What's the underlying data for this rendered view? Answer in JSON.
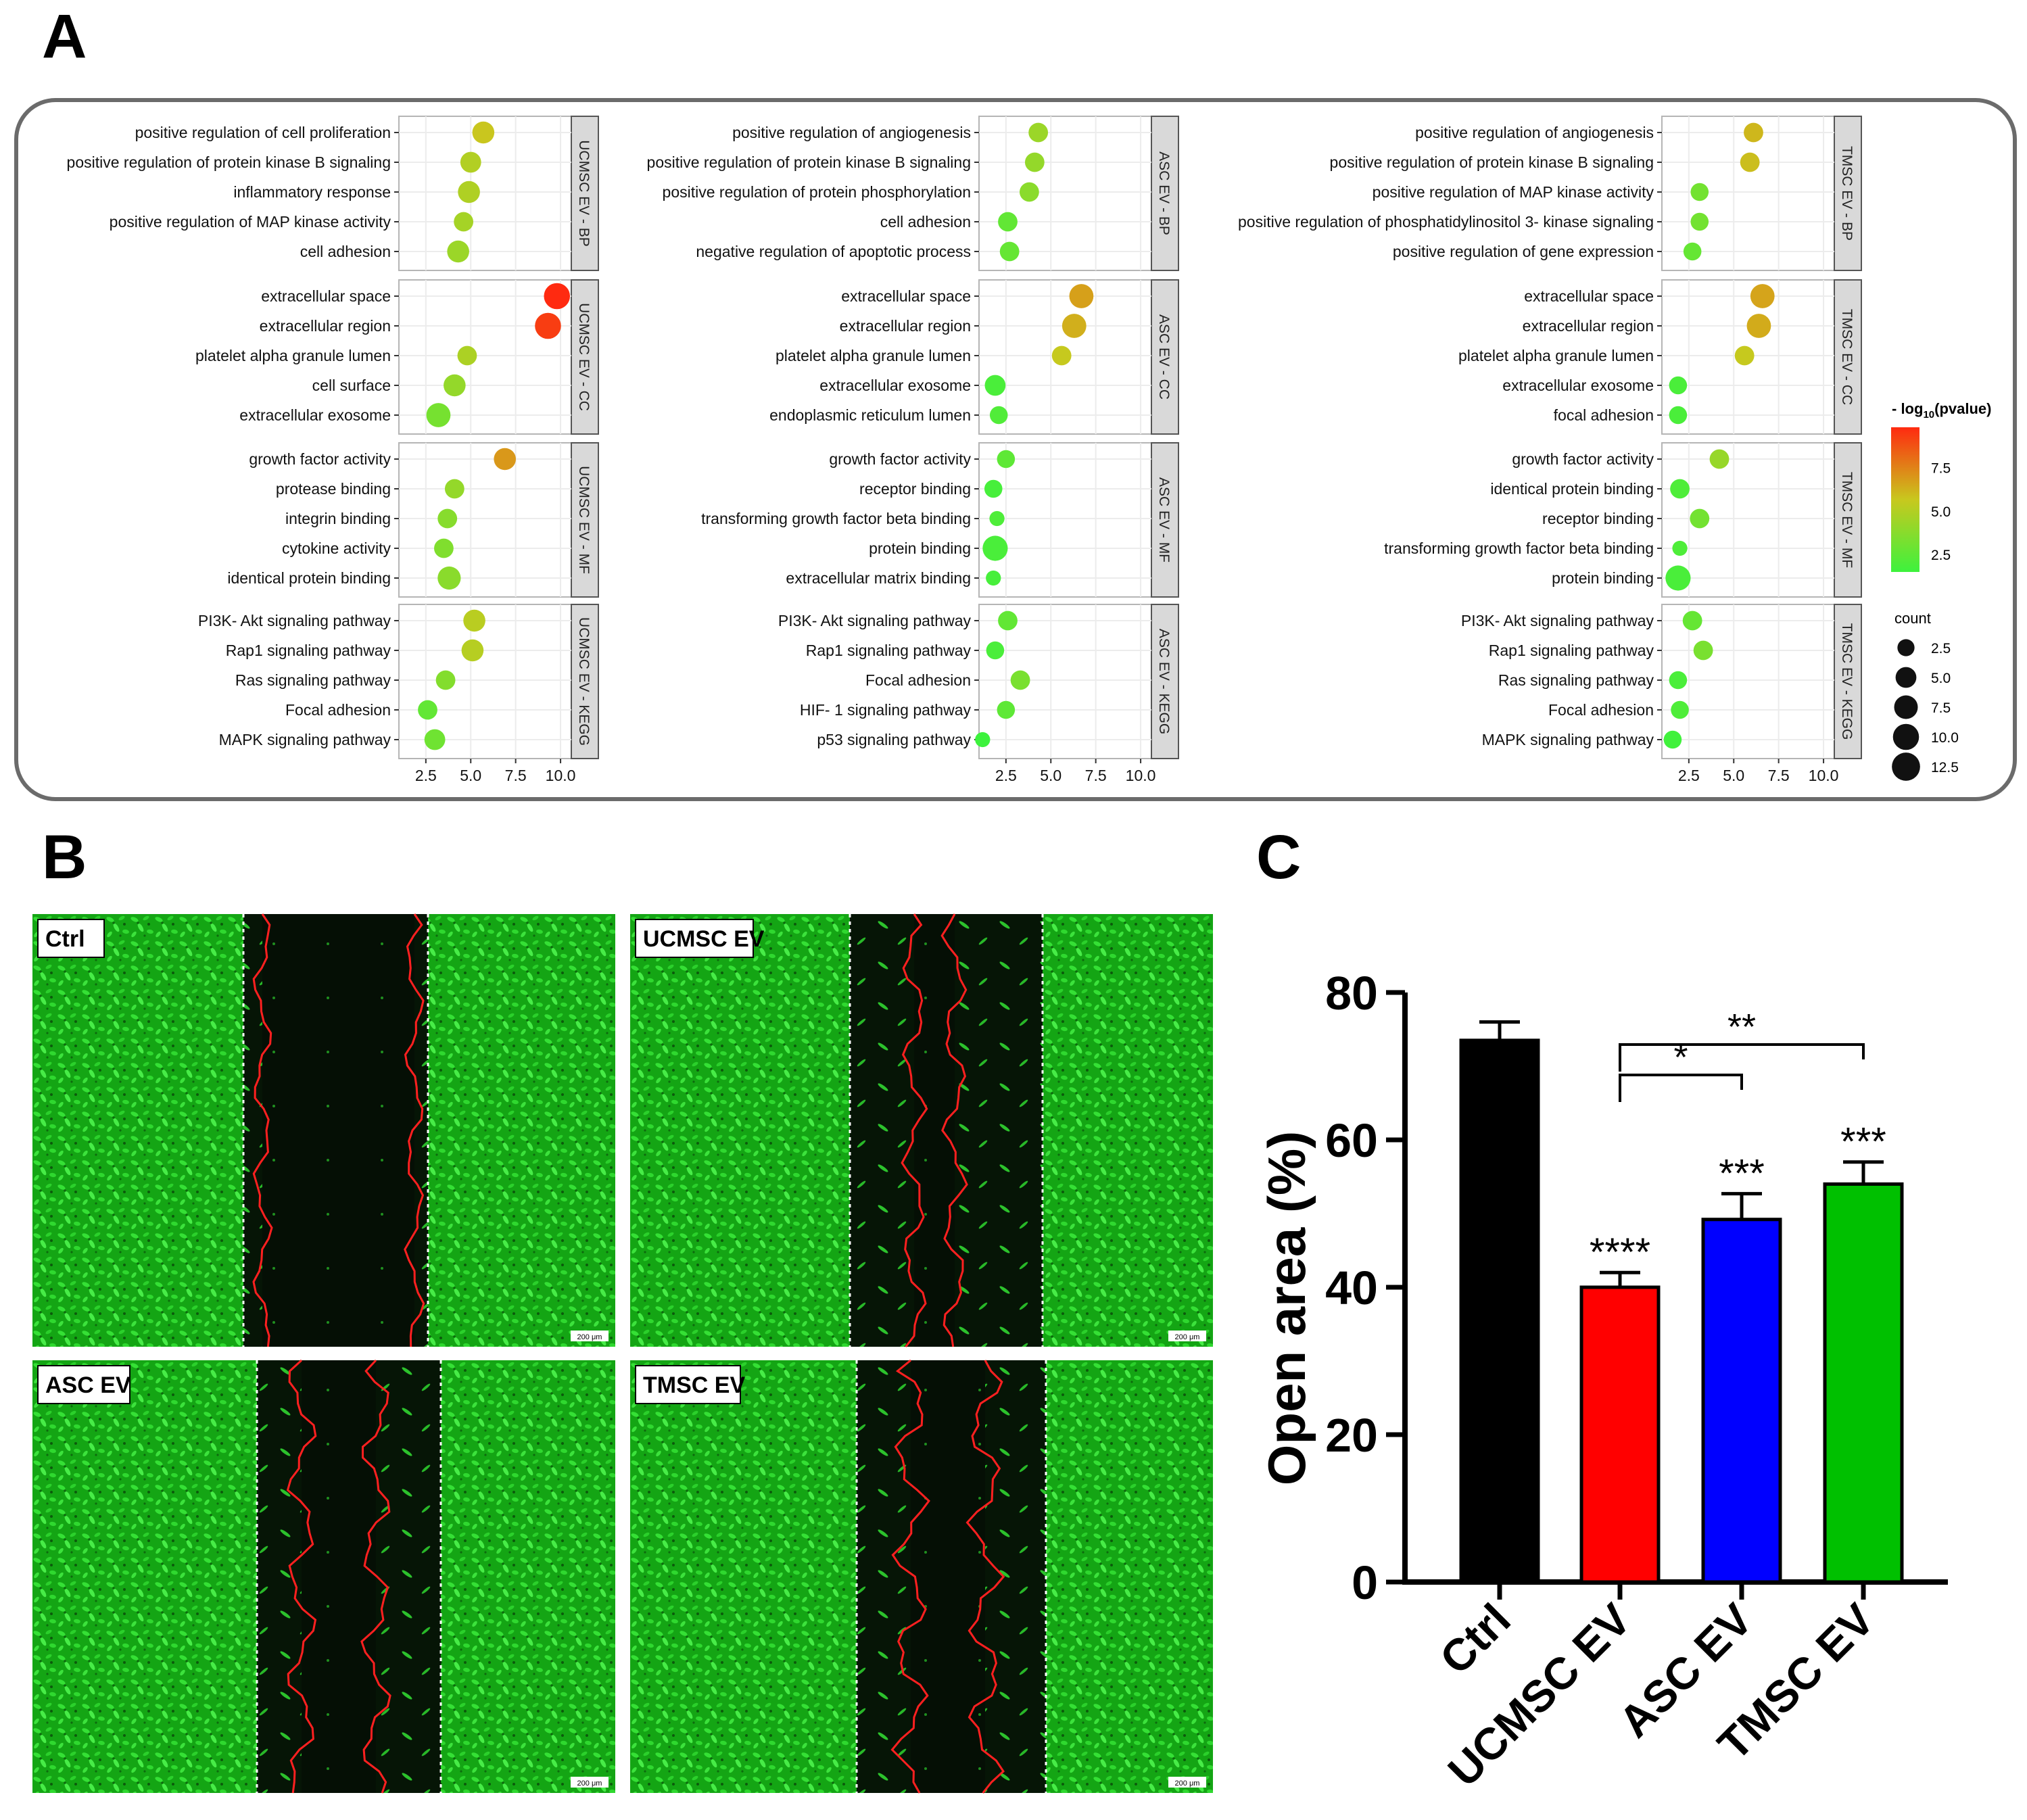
{
  "panel_labels": {
    "a": "A",
    "b": "B",
    "c": "C"
  },
  "panel_a": {
    "axis_ticks": [
      "2.5",
      "5.0",
      "7.5",
      "10.0"
    ],
    "columns": [
      {
        "name": "UCMSC",
        "facets": [
          {
            "strip": "UCMSC EV - BP",
            "terms": [
              {
                "label": "positive regulation of cell proliferation",
                "x": 5.7,
                "count": 6
              },
              {
                "label": "positive regulation of protein kinase B signaling",
                "x": 5.0,
                "count": 5
              },
              {
                "label": "inflammatory response",
                "x": 4.9,
                "count": 6
              },
              {
                "label": "positive regulation of MAP kinase activity",
                "x": 4.6,
                "count": 4
              },
              {
                "label": "cell adhesion",
                "x": 4.3,
                "count": 6
              }
            ]
          },
          {
            "strip": "UCMSC EV - CC",
            "terms": [
              {
                "label": "extracellular space",
                "x": 9.8,
                "count": 10
              },
              {
                "label": "extracellular region",
                "x": 9.3,
                "count": 10
              },
              {
                "label": "platelet alpha granule lumen",
                "x": 4.8,
                "count": 4
              },
              {
                "label": "cell surface",
                "x": 4.1,
                "count": 6
              },
              {
                "label": "extracellular exosome",
                "x": 3.2,
                "count": 8
              }
            ]
          },
          {
            "strip": "UCMSC EV - MF",
            "terms": [
              {
                "label": "growth factor activity",
                "x": 6.9,
                "count": 6
              },
              {
                "label": "protease binding",
                "x": 4.1,
                "count": 4
              },
              {
                "label": "integrin binding",
                "x": 3.7,
                "count": 4
              },
              {
                "label": "cytokine activity",
                "x": 3.5,
                "count": 4
              },
              {
                "label": "identical protein binding",
                "x": 3.8,
                "count": 7
              }
            ]
          },
          {
            "strip": "UCMSC EV - KEGG",
            "terms": [
              {
                "label": "PI3K- Akt signaling pathway",
                "x": 5.2,
                "count": 6
              },
              {
                "label": "Rap1 signaling pathway",
                "x": 5.1,
                "count": 6
              },
              {
                "label": "Ras signaling pathway",
                "x": 3.6,
                "count": 4
              },
              {
                "label": "Focal adhesion",
                "x": 2.6,
                "count": 4
              },
              {
                "label": "MAPK signaling pathway",
                "x": 3.0,
                "count": 5
              }
            ]
          }
        ]
      },
      {
        "name": "ASC",
        "facets": [
          {
            "strip": "ASC EV - BP",
            "terms": [
              {
                "label": "positive regulation of angiogenesis",
                "x": 4.3,
                "count": 4
              },
              {
                "label": "positive regulation of protein kinase B signaling",
                "x": 4.1,
                "count": 4
              },
              {
                "label": "positive regulation of protein phosphorylation",
                "x": 3.8,
                "count": 4
              },
              {
                "label": "cell adhesion",
                "x": 2.6,
                "count": 4
              },
              {
                "label": "negative regulation of apoptotic process",
                "x": 2.7,
                "count": 4
              }
            ]
          },
          {
            "strip": "ASC EV - CC",
            "terms": [
              {
                "label": "extracellular space",
                "x": 6.7,
                "count": 8
              },
              {
                "label": "extracellular region",
                "x": 6.3,
                "count": 8
              },
              {
                "label": "platelet alpha granule lumen",
                "x": 5.6,
                "count": 4
              },
              {
                "label": "extracellular exosome",
                "x": 1.9,
                "count": 5
              },
              {
                "label": "endoplasmic reticulum lumen",
                "x": 2.1,
                "count": 3
              }
            ]
          },
          {
            "strip": "ASC EV - MF",
            "terms": [
              {
                "label": "growth factor activity",
                "x": 2.5,
                "count": 3
              },
              {
                "label": "receptor binding",
                "x": 1.8,
                "count": 3
              },
              {
                "label": "transforming growth factor beta binding",
                "x": 2.0,
                "count": 1.5
              },
              {
                "label": "protein binding",
                "x": 1.9,
                "count": 9
              },
              {
                "label": "extracellular matrix binding",
                "x": 1.8,
                "count": 1.5
              }
            ]
          },
          {
            "strip": "ASC EV - KEGG",
            "terms": [
              {
                "label": "PI3K- Akt signaling pathway",
                "x": 2.6,
                "count": 4
              },
              {
                "label": "Rap1 signaling pathway",
                "x": 1.9,
                "count": 3
              },
              {
                "label": "Focal adhesion",
                "x": 3.3,
                "count": 4
              },
              {
                "label": "HIF- 1 signaling pathway",
                "x": 2.5,
                "count": 3
              },
              {
                "label": "p53 signaling pathway",
                "x": 1.2,
                "count": 1.5
              }
            ]
          }
        ]
      },
      {
        "name": "TMSC",
        "facets": [
          {
            "strip": "TMSC EV - BP",
            "terms": [
              {
                "label": "positive regulation of angiogenesis",
                "x": 6.1,
                "count": 4
              },
              {
                "label": "positive regulation of protein kinase B signaling",
                "x": 5.9,
                "count": 4
              },
              {
                "label": "positive regulation of MAP kinase activity",
                "x": 3.1,
                "count": 3
              },
              {
                "label": "positive regulation of phosphatidylinositol 3- kinase signaling",
                "x": 3.1,
                "count": 3
              },
              {
                "label": "positive regulation of gene expression",
                "x": 2.7,
                "count": 3
              }
            ]
          },
          {
            "strip": "TMSC EV - CC",
            "terms": [
              {
                "label": "extracellular space",
                "x": 6.6,
                "count": 8
              },
              {
                "label": "extracellular region",
                "x": 6.4,
                "count": 8
              },
              {
                "label": "platelet alpha granule lumen",
                "x": 5.6,
                "count": 4
              },
              {
                "label": "extracellular exosome",
                "x": 1.9,
                "count": 3
              },
              {
                "label": "focal adhesion",
                "x": 1.9,
                "count": 3
              }
            ]
          },
          {
            "strip": "TMSC EV - MF",
            "terms": [
              {
                "label": "growth factor activity",
                "x": 4.2,
                "count": 4
              },
              {
                "label": "identical protein binding",
                "x": 2.0,
                "count": 4
              },
              {
                "label": "receptor binding",
                "x": 3.1,
                "count": 4
              },
              {
                "label": "transforming growth factor beta binding",
                "x": 2.0,
                "count": 1.5
              },
              {
                "label": "protein binding",
                "x": 1.9,
                "count": 9
              }
            ]
          },
          {
            "strip": "TMSC EV - KEGG",
            "terms": [
              {
                "label": "PI3K- Akt signaling pathway",
                "x": 2.7,
                "count": 4
              },
              {
                "label": "Rap1 signaling pathway",
                "x": 3.3,
                "count": 4
              },
              {
                "label": "Ras signaling pathway",
                "x": 1.9,
                "count": 3
              },
              {
                "label": "Focal adhesion",
                "x": 2.0,
                "count": 3
              },
              {
                "label": "MAPK signaling pathway",
                "x": 1.6,
                "count": 3
              }
            ]
          }
        ]
      }
    ],
    "legend": {
      "color_title_prefix": "- log",
      "color_title_sub": "10",
      "color_title_suffix": "(pvalue)",
      "color_ticks": [
        "7.5",
        "5.0",
        "2.5"
      ],
      "size_title": "count",
      "size_ticks": [
        "2.5",
        "5.0",
        "7.5",
        "10.0",
        "12.5"
      ],
      "colors": {
        "low": "#3df23d",
        "mid": "#c8c81e",
        "high": "#ff2a10"
      }
    }
  },
  "panel_b": {
    "images": [
      {
        "label": "Ctrl",
        "scale": "200 μm"
      },
      {
        "label": "UCMSC EV",
        "scale": "200 μm"
      },
      {
        "label": "ASC EV",
        "scale": "200 μm"
      },
      {
        "label": "TMSC EV",
        "scale": "200 μm"
      }
    ]
  },
  "chart_data": {
    "type": "bar",
    "title": "",
    "ylabel": "Open area (%)",
    "xlabel": "",
    "categories": [
      "Ctrl",
      "UCMSC EV",
      "ASC EV",
      "TMSC EV"
    ],
    "values": [
      73.5,
      40,
      49.2,
      54
    ],
    "errors": [
      2.5,
      2.0,
      3.5,
      3.0
    ],
    "colors": [
      "#000000",
      "#ff0000",
      "#0000ff",
      "#00c000"
    ],
    "ylim": [
      0,
      80
    ],
    "yticks": [
      0,
      20,
      40,
      60,
      80
    ],
    "significance": [
      "",
      "****",
      "***",
      "***"
    ],
    "brackets": [
      {
        "from": "UCMSC EV",
        "to": "ASC EV",
        "label": "*"
      },
      {
        "from": "UCMSC EV",
        "to": "TMSC EV",
        "label": "**"
      }
    ]
  }
}
